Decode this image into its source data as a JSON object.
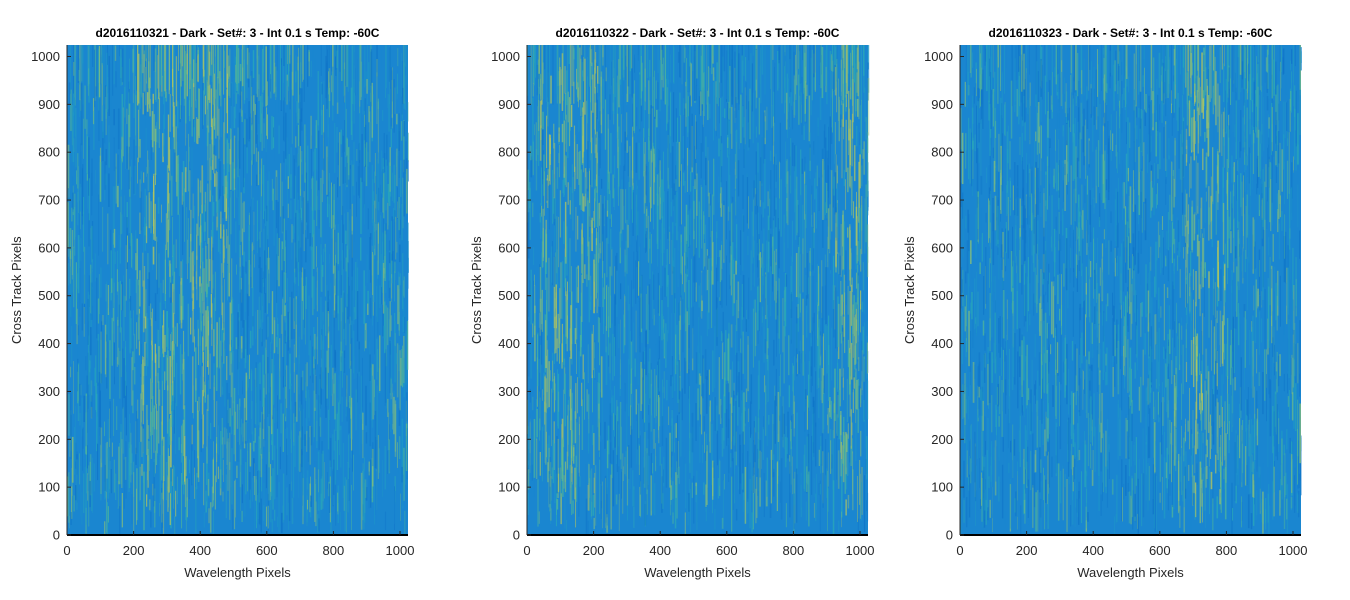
{
  "figure": {
    "colormap": [
      "#0f74c8",
      "#1a86d0",
      "#1f98c6",
      "#2aa8b8",
      "#4fb59a",
      "#86bf7a",
      "#b6c75c"
    ],
    "axis_color": "#262626"
  },
  "chart_data": [
    {
      "type": "heatmap",
      "title": "d2016110321 - Dark - Set#: 3 - Int 0.1 s Temp: -60C",
      "xlabel": "Wavelength Pixels",
      "ylabel": "Cross Track Pixels",
      "xlim": [
        0,
        1024
      ],
      "ylim": [
        0,
        1024
      ],
      "xticks": [
        0,
        200,
        400,
        600,
        800,
        1000
      ],
      "yticks": [
        0,
        100,
        200,
        300,
        400,
        500,
        600,
        700,
        800,
        900,
        1000
      ],
      "grid": false,
      "warm_bands": [
        [
          150,
          550
        ]
      ]
    },
    {
      "type": "heatmap",
      "title": "d2016110322 - Dark - Set#: 3 - Int 0.1 s Temp: -60C",
      "xlabel": "Wavelength Pixels",
      "ylabel": "Cross Track Pixels",
      "xlim": [
        0,
        1024
      ],
      "ylim": [
        0,
        1024
      ],
      "xticks": [
        0,
        200,
        400,
        600,
        800,
        1000
      ],
      "yticks": [
        0,
        100,
        200,
        300,
        400,
        500,
        600,
        700,
        800,
        900,
        1000
      ],
      "grid": false,
      "warm_bands": [
        [
          0,
          250
        ],
        [
          900,
          1024
        ]
      ]
    },
    {
      "type": "heatmap",
      "title": "d2016110323 - Dark - Set#: 3 - Int 0.1 s Temp: -60C",
      "xlabel": "Wavelength Pixels",
      "ylabel": "Cross Track Pixels",
      "xlim": [
        0,
        1024
      ],
      "ylim": [
        0,
        1024
      ],
      "xticks": [
        0,
        200,
        400,
        600,
        800,
        1000
      ],
      "yticks": [
        0,
        100,
        200,
        300,
        400,
        500,
        600,
        700,
        800,
        900,
        1000
      ],
      "grid": false,
      "warm_bands": [
        [
          650,
          820
        ]
      ]
    }
  ]
}
